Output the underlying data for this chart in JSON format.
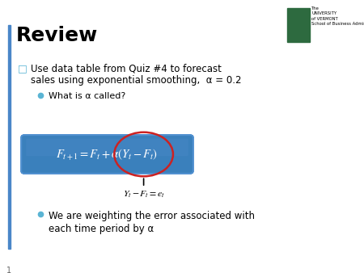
{
  "title": "Review",
  "bullet1_line1": "Use data table from Quiz #4 to forecast",
  "bullet1_line2": "sales using exponential smoothing,  α = 0.2",
  "subbullet1": "What is α called?",
  "formula_annotation": "Y₁ – F₁ = e₁",
  "bullet2_line1": "We are weighting the error associated with",
  "bullet2_line2": "each time period by α",
  "bg_color": "#ffffff",
  "title_color": "#000000",
  "text_color": "#000000",
  "left_bar_color": "#4a86c8",
  "circle_color": "#cc2222",
  "page_number": "1",
  "uvm_green": "#2d6a3f",
  "bullet_teal": "#5ab4d4",
  "box_dark": "#1a4f7a",
  "box_mid": "#2060a0",
  "box_light": "#4a88c8"
}
